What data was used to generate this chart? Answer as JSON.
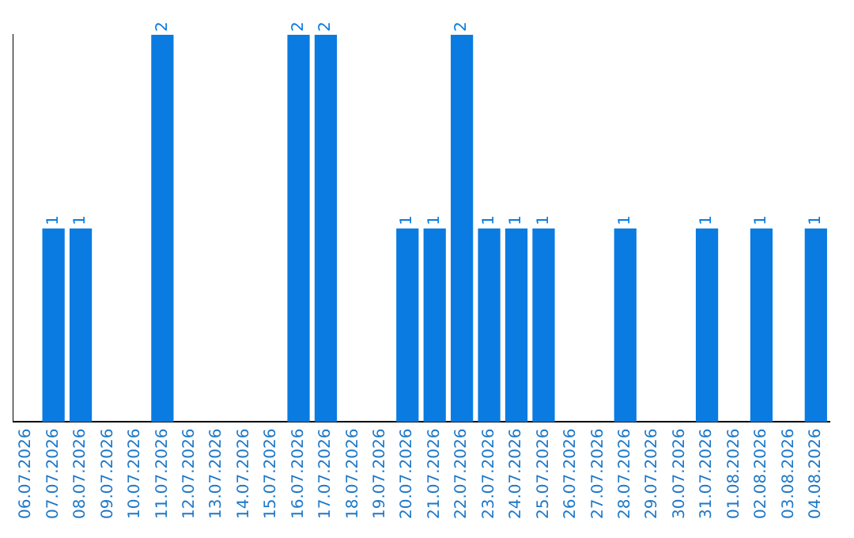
{
  "chart_data": {
    "type": "bar",
    "categories": [
      "06.07.2026",
      "07.07.2026",
      "08.07.2026",
      "09.07.2026",
      "10.07.2026",
      "11.07.2026",
      "12.07.2026",
      "13.07.2026",
      "14.07.2026",
      "15.07.2026",
      "16.07.2026",
      "17.07.2026",
      "18.07.2026",
      "19.07.2026",
      "20.07.2026",
      "21.07.2026",
      "22.07.2026",
      "23.07.2026",
      "24.07.2026",
      "25.07.2026",
      "26.07.2026",
      "27.07.2026",
      "28.07.2026",
      "29.07.2026",
      "30.07.2026",
      "31.07.2026",
      "01.08.2026",
      "02.08.2026",
      "03.08.2026",
      "04.08.2026"
    ],
    "values": [
      0,
      1,
      1,
      0,
      0,
      2,
      0,
      0,
      0,
      0,
      2,
      2,
      0,
      0,
      1,
      1,
      2,
      1,
      1,
      1,
      0,
      0,
      1,
      0,
      0,
      1,
      0,
      1,
      0,
      1
    ],
    "value_labels": [
      null,
      "1",
      "1",
      null,
      null,
      "2",
      null,
      null,
      null,
      null,
      "2",
      "2",
      null,
      null,
      "1",
      "1",
      "2",
      "1",
      "1",
      "1",
      null,
      null,
      "1",
      null,
      null,
      "1",
      null,
      "1",
      null,
      "1"
    ],
    "color": "#0a7be0",
    "ylim": [
      0,
      2
    ],
    "grid": false,
    "legend": false,
    "tick_labels": "x"
  }
}
